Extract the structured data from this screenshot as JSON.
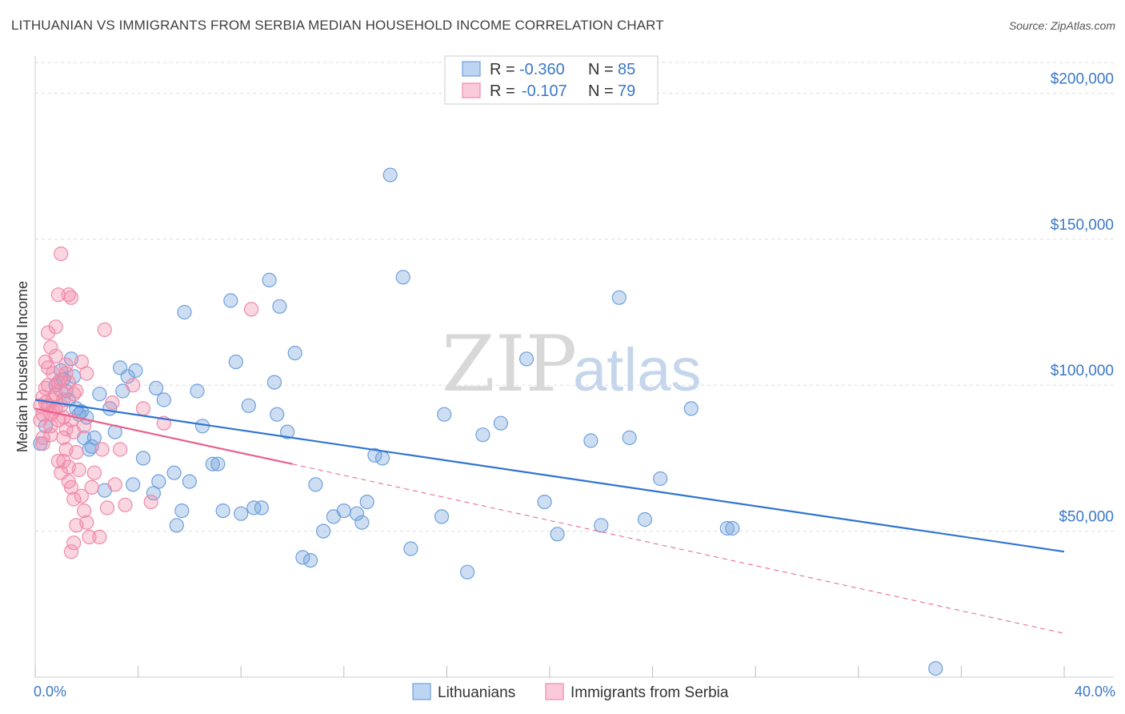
{
  "header": {
    "title": "LITHUANIAN VS IMMIGRANTS FROM SERBIA MEDIAN HOUSEHOLD INCOME CORRELATION CHART",
    "source": "Source: ZipAtlas.com"
  },
  "watermark": {
    "zip": "ZIP",
    "atlas": "atlas"
  },
  "legend": {
    "rows": [
      {
        "r_label": "R =",
        "r_value": "-0.360",
        "n_label": "N =",
        "n_value": "85"
      },
      {
        "r_label": "R =",
        "r_value": "-0.107",
        "n_label": "N =",
        "n_value": "79"
      }
    ]
  },
  "colors": {
    "blue": "#6fa0dc",
    "blue_line": "#2f74d0",
    "pink": "#f08aaa",
    "pink_line": "#e8608a",
    "grid": "#dddddd",
    "tick_text": "#3a78c7"
  },
  "chart_data": {
    "type": "scatter",
    "title": "LITHUANIAN VS IMMIGRANTS FROM SERBIA MEDIAN HOUSEHOLD INCOME CORRELATION CHART",
    "xlabel": "",
    "ylabel": "Median Household Income",
    "xlim": [
      0,
      40
    ],
    "ylim": [
      0,
      210000
    ],
    "x_tick_labels": [
      "0.0%",
      "40.0%"
    ],
    "y_ticks": [
      50000,
      100000,
      150000,
      200000
    ],
    "y_tick_labels": [
      "$50,000",
      "$100,000",
      "$150,000",
      "$200,000"
    ],
    "grid": true,
    "legend": [
      "Lithuanians",
      "Immigrants from Serbia"
    ],
    "series": [
      {
        "name": "Lithuanians",
        "r": -0.36,
        "n": 85,
        "trend": {
          "x0": 0,
          "y0": 95000,
          "x1": 40,
          "y1": 43000,
          "style": "solid"
        },
        "points": [
          [
            0.2,
            80000
          ],
          [
            1.0,
            105000
          ],
          [
            1.1,
            102000
          ],
          [
            1.2,
            98000
          ],
          [
            1.3,
            95000
          ],
          [
            1.5,
            103000
          ],
          [
            1.6,
            92000
          ],
          [
            1.8,
            91000
          ],
          [
            1.9,
            82000
          ],
          [
            2.0,
            89000
          ],
          [
            2.1,
            78000
          ],
          [
            2.3,
            82000
          ],
          [
            2.5,
            97000
          ],
          [
            2.7,
            64000
          ],
          [
            2.9,
            92000
          ],
          [
            3.1,
            84000
          ],
          [
            3.3,
            106000
          ],
          [
            3.4,
            98000
          ],
          [
            3.6,
            103000
          ],
          [
            3.8,
            66000
          ],
          [
            3.9,
            105000
          ],
          [
            4.2,
            75000
          ],
          [
            4.6,
            63000
          ],
          [
            4.7,
            99000
          ],
          [
            4.8,
            67000
          ],
          [
            5.0,
            95000
          ],
          [
            5.4,
            70000
          ],
          [
            5.5,
            52000
          ],
          [
            5.7,
            57000
          ],
          [
            5.8,
            125000
          ],
          [
            6.0,
            67000
          ],
          [
            6.5,
            86000
          ],
          [
            6.9,
            73000
          ],
          [
            7.1,
            73000
          ],
          [
            7.3,
            57000
          ],
          [
            7.6,
            129000
          ],
          [
            7.8,
            108000
          ],
          [
            8.0,
            56000
          ],
          [
            8.3,
            93000
          ],
          [
            8.5,
            58000
          ],
          [
            8.8,
            58000
          ],
          [
            9.1,
            136000
          ],
          [
            9.3,
            101000
          ],
          [
            9.4,
            90000
          ],
          [
            9.5,
            127000
          ],
          [
            9.8,
            84000
          ],
          [
            10.1,
            111000
          ],
          [
            10.4,
            41000
          ],
          [
            10.7,
            40000
          ],
          [
            10.9,
            66000
          ],
          [
            11.2,
            50000
          ],
          [
            11.6,
            55000
          ],
          [
            12.0,
            57000
          ],
          [
            12.5,
            56000
          ],
          [
            12.7,
            53000
          ],
          [
            12.9,
            60000
          ],
          [
            13.2,
            76000
          ],
          [
            13.5,
            75000
          ],
          [
            13.8,
            172000
          ],
          [
            14.3,
            137000
          ],
          [
            14.6,
            44000
          ],
          [
            15.8,
            55000
          ],
          [
            15.9,
            90000
          ],
          [
            16.8,
            36000
          ],
          [
            17.4,
            83000
          ],
          [
            18.1,
            87000
          ],
          [
            19.1,
            109000
          ],
          [
            19.8,
            60000
          ],
          [
            20.3,
            49000
          ],
          [
            21.6,
            81000
          ],
          [
            22.0,
            52000
          ],
          [
            22.7,
            130000
          ],
          [
            23.1,
            82000
          ],
          [
            23.7,
            54000
          ],
          [
            24.3,
            68000
          ],
          [
            25.5,
            92000
          ],
          [
            26.9,
            51000
          ],
          [
            27.1,
            51000
          ],
          [
            35.0,
            3000
          ],
          [
            1.4,
            109000
          ],
          [
            0.8,
            100000
          ],
          [
            2.2,
            79000
          ],
          [
            6.3,
            98000
          ],
          [
            1.7,
            90000
          ],
          [
            0.4,
            86000
          ]
        ]
      },
      {
        "name": "Immigrants from Serbia",
        "r": -0.107,
        "n": 79,
        "trend": {
          "x0": 0,
          "y0": 92000,
          "x1": 10,
          "y1": 73000,
          "style": "solid",
          "dashed_to": {
            "x": 40,
            "y": 15000
          }
        },
        "points": [
          [
            0.2,
            93000
          ],
          [
            0.2,
            88000
          ],
          [
            0.3,
            82000
          ],
          [
            0.3,
            90000
          ],
          [
            0.3,
            96000
          ],
          [
            0.4,
            99000
          ],
          [
            0.4,
            108000
          ],
          [
            0.5,
            100000
          ],
          [
            0.5,
            106000
          ],
          [
            0.5,
            118000
          ],
          [
            0.5,
            93000
          ],
          [
            0.6,
            86000
          ],
          [
            0.6,
            90000
          ],
          [
            0.6,
            113000
          ],
          [
            0.7,
            95000
          ],
          [
            0.7,
            104000
          ],
          [
            0.8,
            92000
          ],
          [
            0.8,
            97000
          ],
          [
            0.8,
            110000
          ],
          [
            0.8,
            120000
          ],
          [
            0.9,
            74000
          ],
          [
            0.9,
            101000
          ],
          [
            0.9,
            131000
          ],
          [
            1.0,
            93000
          ],
          [
            1.0,
            98000
          ],
          [
            1.0,
            102000
          ],
          [
            1.0,
            145000
          ],
          [
            1.1,
            74000
          ],
          [
            1.1,
            82000
          ],
          [
            1.1,
            89000
          ],
          [
            1.1,
            95000
          ],
          [
            1.2,
            78000
          ],
          [
            1.2,
            85000
          ],
          [
            1.2,
            104000
          ],
          [
            1.2,
            107000
          ],
          [
            1.3,
            67000
          ],
          [
            1.3,
            72000
          ],
          [
            1.3,
            101000
          ],
          [
            1.3,
            131000
          ],
          [
            1.4,
            43000
          ],
          [
            1.4,
            65000
          ],
          [
            1.4,
            88000
          ],
          [
            1.4,
            130000
          ],
          [
            1.5,
            46000
          ],
          [
            1.5,
            61000
          ],
          [
            1.5,
            84000
          ],
          [
            1.5,
            97000
          ],
          [
            1.6,
            52000
          ],
          [
            1.6,
            77000
          ],
          [
            1.7,
            71000
          ],
          [
            1.8,
            62000
          ],
          [
            1.8,
            108000
          ],
          [
            1.9,
            57000
          ],
          [
            1.9,
            86000
          ],
          [
            2.0,
            53000
          ],
          [
            2.0,
            104000
          ],
          [
            2.1,
            48000
          ],
          [
            2.2,
            65000
          ],
          [
            2.3,
            70000
          ],
          [
            2.5,
            48000
          ],
          [
            2.6,
            78000
          ],
          [
            2.7,
            119000
          ],
          [
            3.0,
            94000
          ],
          [
            3.1,
            66000
          ],
          [
            3.3,
            78000
          ],
          [
            3.5,
            59000
          ],
          [
            3.8,
            100000
          ],
          [
            4.2,
            92000
          ],
          [
            4.5,
            60000
          ],
          [
            5.0,
            87000
          ],
          [
            8.4,
            126000
          ],
          [
            0.9,
            88000
          ],
          [
            0.7,
            91000
          ],
          [
            0.4,
            94000
          ],
          [
            1.6,
            98000
          ],
          [
            0.6,
            83000
          ],
          [
            0.3,
            80000
          ],
          [
            1.0,
            70000
          ],
          [
            2.8,
            58000
          ]
        ]
      }
    ]
  }
}
